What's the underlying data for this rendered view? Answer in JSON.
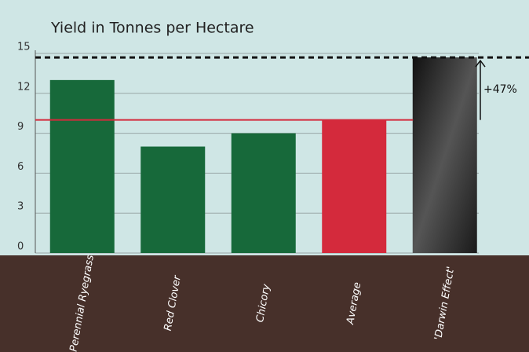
{
  "chart_data": {
    "type": "bar",
    "title": "Yield in Tonnes per Hectare",
    "categories": [
      "Perennial Ryegrass",
      "Red Clover",
      "Chicory",
      "Average",
      "'Darwin Effect'"
    ],
    "values": [
      13,
      8,
      9,
      10,
      14.7
    ],
    "colors": [
      "#17693a",
      "#17693a",
      "#17693a",
      "#d42a3c",
      "#2b2b2b"
    ],
    "ylim": [
      0,
      15
    ],
    "yticks": [
      0,
      3,
      6,
      9,
      12,
      15
    ],
    "grid": true,
    "annotation": "+47%"
  }
}
